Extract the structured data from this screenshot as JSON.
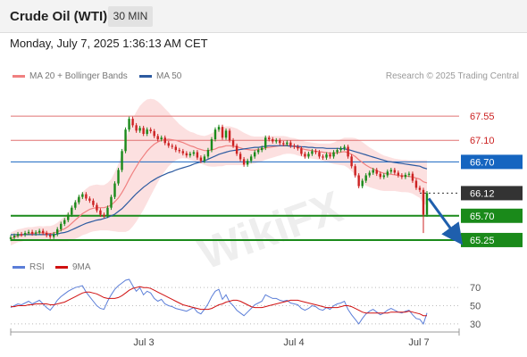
{
  "header": {
    "instrument": "Crude Oil (WTI)",
    "timeframe": "30 MIN"
  },
  "datetime": "Monday, July 7, 2025 1:36:13 AM CET",
  "legend": {
    "ma20_label": "MA 20 + Bollinger Bands",
    "ma20_color": "#f08080",
    "ma50_label": "MA 50",
    "ma50_color": "#2c5aa0",
    "credit": "Research © 2025 Trading Central"
  },
  "rsi_legend": {
    "rsi_label": "RSI",
    "rsi_color": "#5b7ed8",
    "ma9_label": "9MA",
    "ma9_color": "#d01010"
  },
  "watermark": "WikiFX",
  "colors": {
    "up": "#1a8a1a",
    "down": "#cc2222",
    "resistance": "#e07070",
    "pivot": "#1565c0",
    "support": "#1a8a1a",
    "current": "#333333"
  },
  "chart_data": [
    {
      "type": "candlestick",
      "title": "Crude Oil (WTI)",
      "timeframe": "30 MIN",
      "x_ticks": [
        "Jul 3",
        "Jul 4",
        "Jul 7"
      ],
      "ylim": [
        65.1,
        67.75
      ],
      "levels": [
        {
          "label": "67.55",
          "value": 67.55,
          "kind": "resistance"
        },
        {
          "label": "67.10",
          "value": 67.1,
          "kind": "resistance"
        },
        {
          "label": "66.70",
          "value": 66.7,
          "kind": "pivot"
        },
        {
          "label": "66.12",
          "value": 66.12,
          "kind": "current"
        },
        {
          "label": "65.70",
          "value": 65.7,
          "kind": "support"
        },
        {
          "label": "65.25",
          "value": 65.25,
          "kind": "support"
        }
      ],
      "current_price": 66.12,
      "projected_path": [
        66.12,
        65.25
      ],
      "close_series": [
        65.3,
        65.33,
        65.36,
        65.35,
        65.38,
        65.4,
        65.37,
        65.39,
        65.42,
        65.38,
        65.34,
        65.31,
        65.36,
        65.45,
        65.55,
        65.62,
        65.72,
        65.85,
        65.95,
        66.05,
        66.1,
        66.02,
        65.98,
        65.9,
        65.8,
        65.72,
        65.7,
        65.85,
        66.05,
        66.3,
        66.55,
        66.9,
        67.3,
        67.5,
        67.38,
        67.28,
        67.33,
        67.22,
        67.3,
        67.27,
        67.18,
        67.12,
        67.15,
        67.05,
        67.0,
        66.98,
        66.92,
        66.9,
        66.86,
        66.82,
        66.85,
        66.88,
        66.78,
        66.72,
        66.8,
        66.92,
        67.12,
        67.3,
        67.35,
        67.15,
        67.28,
        67.1,
        67.0,
        66.85,
        66.75,
        66.65,
        66.72,
        66.8,
        66.88,
        66.92,
        66.96,
        67.15,
        67.12,
        67.08,
        67.1,
        67.05,
        67.03,
        67.06,
        67.0,
        66.98,
        66.95,
        66.85,
        66.8,
        66.85,
        66.9,
        66.88,
        66.8,
        66.78,
        66.84,
        66.8,
        66.88,
        66.92,
        66.95,
        66.98,
        66.8,
        66.62,
        66.45,
        66.25,
        66.35,
        66.45,
        66.5,
        66.55,
        66.48,
        66.42,
        66.45,
        66.52,
        66.55,
        66.5,
        66.45,
        66.42,
        66.46,
        66.48,
        66.35,
        66.22,
        66.18,
        65.72,
        66.12
      ],
      "ma20": [
        65.27,
        65.3,
        65.33,
        65.34,
        65.36,
        65.37,
        65.37,
        65.38,
        65.39,
        65.38,
        65.38,
        65.37,
        65.38,
        65.4,
        65.43,
        65.46,
        65.5,
        65.56,
        65.62,
        65.68,
        65.74,
        65.78,
        65.82,
        65.84,
        65.85,
        65.85,
        65.85,
        65.87,
        65.9,
        65.96,
        66.03,
        66.13,
        66.25,
        66.38,
        66.5,
        66.61,
        66.72,
        66.81,
        66.9,
        66.97,
        67.03,
        67.07,
        67.1,
        67.11,
        67.12,
        67.11,
        67.1,
        67.08,
        67.06,
        67.03,
        67.0,
        66.98,
        66.95,
        66.93,
        66.91,
        66.91,
        66.92,
        66.94,
        66.97,
        66.98,
        67.0,
        67.0,
        66.99,
        66.98,
        66.96,
        66.94,
        66.93,
        66.92,
        66.92,
        66.93,
        66.94,
        66.96,
        66.97,
        66.98,
        66.99,
        67.0,
        67.01,
        67.01,
        67.0,
        66.99,
        66.97,
        66.95,
        66.93,
        66.92,
        66.91,
        66.9,
        66.89,
        66.88,
        66.87,
        66.86,
        66.86,
        66.87,
        66.88,
        66.89,
        66.87,
        66.84,
        66.8,
        66.74,
        66.69,
        66.64,
        66.6,
        66.57,
        66.54,
        66.51,
        66.49,
        66.48,
        66.47,
        66.46,
        66.45,
        66.44,
        66.44,
        66.43,
        66.42,
        66.4,
        66.38,
        66.33,
        66.31
      ],
      "ma50": [
        65.35,
        65.35,
        65.35,
        65.35,
        65.35,
        65.35,
        65.35,
        65.35,
        65.35,
        65.35,
        65.35,
        65.35,
        65.35,
        65.36,
        65.38,
        65.39,
        65.41,
        65.44,
        65.47,
        65.5,
        65.53,
        65.56,
        65.58,
        65.6,
        65.62,
        65.63,
        65.65,
        65.67,
        65.7,
        65.73,
        65.78,
        65.83,
        65.9,
        65.97,
        66.04,
        66.11,
        66.17,
        66.23,
        66.28,
        66.33,
        66.37,
        66.41,
        66.44,
        66.47,
        66.5,
        66.52,
        66.55,
        66.57,
        66.59,
        66.61,
        66.63,
        66.66,
        66.68,
        66.7,
        66.72,
        66.75,
        66.78,
        66.81,
        66.84,
        66.86,
        66.88,
        66.9,
        66.91,
        66.92,
        66.93,
        66.94,
        66.95,
        66.96,
        66.97,
        66.97,
        66.98,
        66.99,
        67.0,
        67.0,
        67.0,
        67.0,
        67.0,
        67.0,
        66.99,
        66.99,
        66.99,
        66.98,
        66.98,
        66.97,
        66.97,
        66.96,
        66.96,
        66.96,
        66.95,
        66.95,
        66.95,
        66.95,
        66.95,
        66.94,
        66.93,
        66.91,
        66.89,
        66.87,
        66.85,
        66.83,
        66.81,
        66.79,
        66.77,
        66.75,
        66.73,
        66.71,
        66.7,
        66.69,
        66.68,
        66.67,
        66.66,
        66.65,
        66.64,
        66.63,
        66.62,
        66.59,
        66.57
      ],
      "bollinger_width": [
        0.12,
        0.12,
        0.12,
        0.12,
        0.12,
        0.12,
        0.12,
        0.12,
        0.12,
        0.12,
        0.13,
        0.14,
        0.15,
        0.17,
        0.2,
        0.23,
        0.27,
        0.31,
        0.35,
        0.38,
        0.4,
        0.42,
        0.43,
        0.43,
        0.43,
        0.42,
        0.42,
        0.44,
        0.48,
        0.55,
        0.63,
        0.73,
        0.85,
        0.95,
        1.0,
        1.02,
        1.02,
        1.0,
        0.96,
        0.9,
        0.83,
        0.75,
        0.66,
        0.58,
        0.5,
        0.43,
        0.37,
        0.32,
        0.29,
        0.27,
        0.26,
        0.26,
        0.26,
        0.26,
        0.27,
        0.29,
        0.31,
        0.33,
        0.35,
        0.36,
        0.36,
        0.36,
        0.35,
        0.34,
        0.32,
        0.3,
        0.28,
        0.26,
        0.25,
        0.24,
        0.23,
        0.22,
        0.21,
        0.2,
        0.19,
        0.18,
        0.17,
        0.16,
        0.15,
        0.15,
        0.15,
        0.15,
        0.15,
        0.15,
        0.15,
        0.15,
        0.15,
        0.16,
        0.17,
        0.18,
        0.2,
        0.22,
        0.24,
        0.26,
        0.28,
        0.31,
        0.34,
        0.37,
        0.38,
        0.38,
        0.37,
        0.36,
        0.35,
        0.34,
        0.33,
        0.32,
        0.31,
        0.3,
        0.3,
        0.3,
        0.3,
        0.3,
        0.31,
        0.33,
        0.35,
        0.4,
        0.42
      ]
    },
    {
      "type": "line",
      "title": "RSI",
      "y_ticks": [
        30,
        50,
        70
      ],
      "ylim": [
        25,
        80
      ],
      "series": [
        {
          "name": "RSI",
          "values": [
            48,
            50,
            52,
            51,
            53,
            55,
            52,
            54,
            56,
            52,
            48,
            45,
            50,
            56,
            60,
            63,
            66,
            68,
            70,
            71,
            72,
            65,
            60,
            55,
            50,
            47,
            46,
            55,
            62,
            68,
            72,
            75,
            78,
            79,
            72,
            66,
            70,
            62,
            66,
            64,
            58,
            55,
            57,
            52,
            50,
            49,
            47,
            46,
            45,
            44,
            46,
            48,
            43,
            41,
            46,
            52,
            60,
            66,
            68,
            57,
            62,
            54,
            50,
            45,
            42,
            39,
            43,
            47,
            51,
            53,
            55,
            62,
            60,
            58,
            58,
            56,
            55,
            56,
            53,
            52,
            51,
            47,
            45,
            47,
            50,
            49,
            46,
            45,
            48,
            46,
            50,
            52,
            53,
            55,
            46,
            40,
            35,
            30,
            36,
            41,
            44,
            46,
            43,
            40,
            42,
            45,
            47,
            45,
            43,
            42,
            44,
            45,
            40,
            36,
            35,
            30,
            42
          ]
        },
        {
          "name": "9MA",
          "values": [
            49,
            49,
            50,
            50,
            50,
            51,
            51,
            52,
            52,
            52,
            52,
            51,
            51,
            52,
            53,
            54,
            56,
            58,
            60,
            62,
            64,
            65,
            65,
            64,
            63,
            61,
            59,
            58,
            58,
            58,
            59,
            61,
            64,
            67,
            69,
            70,
            71,
            70,
            70,
            69,
            67,
            65,
            63,
            61,
            59,
            57,
            55,
            53,
            51,
            50,
            49,
            48,
            47,
            46,
            46,
            46,
            47,
            49,
            51,
            52,
            54,
            55,
            56,
            56,
            55,
            53,
            51,
            49,
            48,
            48,
            48,
            49,
            50,
            51,
            52,
            53,
            54,
            55,
            56,
            56,
            56,
            55,
            54,
            53,
            52,
            51,
            50,
            49,
            48,
            48,
            48,
            48,
            49,
            50,
            50,
            49,
            47,
            45,
            43,
            42,
            42,
            42,
            42,
            42,
            42,
            42,
            43,
            43,
            43,
            43,
            43,
            44,
            43,
            42,
            41,
            39,
            39
          ]
        }
      ]
    }
  ]
}
